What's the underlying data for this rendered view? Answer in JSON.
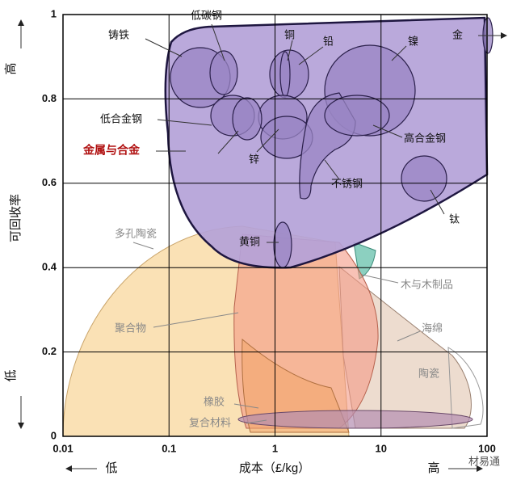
{
  "chart_data": {
    "type": "region",
    "x_label": "成本（£/kg）",
    "y_label": "可回收率",
    "xscale": "log",
    "xlim": [
      0.01,
      100
    ],
    "xticks": [
      0.01,
      0.1,
      1,
      10,
      100
    ],
    "ylim": [
      0,
      1
    ],
    "yticks": [
      0,
      0.2,
      0.4,
      0.6,
      0.8,
      1
    ],
    "grid": true,
    "y_arrow_labels": [
      "高",
      "低"
    ],
    "x_arrow_labels": [
      "低",
      "高"
    ],
    "regions": [
      "金属与合金",
      "铸铁",
      "低碳钢",
      "铜",
      "铅",
      "镍",
      "金",
      "低合金钢",
      "高合金钢",
      "锌",
      "不锈钢",
      "钛",
      "黄铜",
      "多孔陶瓷",
      "木与木制品",
      "聚合物",
      "海绵",
      "陶瓷",
      "橡胶",
      "复合材料"
    ],
    "watermark": "材易通"
  }
}
